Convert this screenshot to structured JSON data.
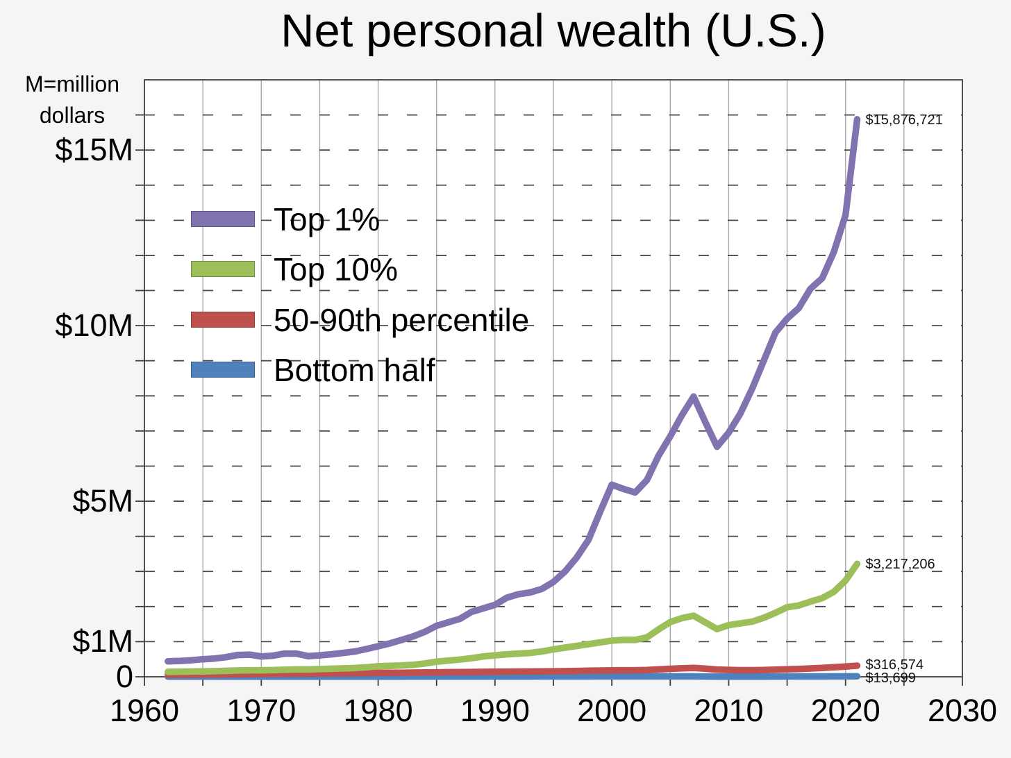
{
  "title": "Net personal wealth (U.S.)",
  "unit_note": {
    "line1": "M=million",
    "line2": "dollars"
  },
  "colors": {
    "top_1_pct": "#8172b0",
    "top_10_pct": "#9cbf5a",
    "pct_50_90": "#c0504d",
    "bottom_half": "#4f81bd",
    "plot_background": "#ffffff",
    "outer_background": "#f5f5f5",
    "frame": "#3f3f3f",
    "vertical_grid": "#a9a9a9",
    "dashed_grid": "#4a4a4a",
    "text": "#000000"
  },
  "chart_data": {
    "type": "line",
    "title": "Net personal wealth (U.S.)",
    "unit": "million USD per adult",
    "xlim": [
      1960,
      2030
    ],
    "ylim": [
      0,
      17
    ],
    "grid": {
      "vertical_solid_every_years": 5,
      "horizontal_dashed_every_million": 1
    },
    "legend_position": "upper-left-inside",
    "x_tick_labels": [
      "1960",
      "1970",
      "1980",
      "1990",
      "2000",
      "2010",
      "2020",
      "2030"
    ],
    "x_tick_values": [
      1960,
      1970,
      1980,
      1990,
      2000,
      2010,
      2020,
      2030
    ],
    "y_tick_labels": [
      {
        "label": "$15M",
        "value": 15
      },
      {
        "label": "$10M",
        "value": 10
      },
      {
        "label": "$5M",
        "value": 5
      },
      {
        "label": "$1M",
        "value": 1
      },
      {
        "label": "0",
        "value": 0
      }
    ],
    "years": [
      1962,
      1963,
      1964,
      1965,
      1966,
      1967,
      1968,
      1969,
      1970,
      1971,
      1972,
      1973,
      1974,
      1975,
      1976,
      1977,
      1978,
      1979,
      1980,
      1981,
      1982,
      1983,
      1984,
      1985,
      1986,
      1987,
      1988,
      1989,
      1990,
      1991,
      1992,
      1993,
      1994,
      1995,
      1996,
      1997,
      1998,
      1999,
      2000,
      2001,
      2002,
      2003,
      2004,
      2005,
      2006,
      2007,
      2008,
      2009,
      2010,
      2011,
      2012,
      2013,
      2014,
      2015,
      2016,
      2017,
      2018,
      2019,
      2020,
      2021
    ],
    "series": [
      {
        "name": "Top 1%",
        "color": "#8172b0",
        "end_label": "$15,876,721",
        "end_value_usd": 15876721,
        "values_usd_m": [
          0.44,
          0.45,
          0.47,
          0.5,
          0.52,
          0.56,
          0.62,
          0.63,
          0.58,
          0.6,
          0.66,
          0.66,
          0.59,
          0.61,
          0.64,
          0.68,
          0.72,
          0.79,
          0.87,
          0.95,
          1.05,
          1.15,
          1.28,
          1.45,
          1.55,
          1.65,
          1.85,
          1.95,
          2.05,
          2.25,
          2.35,
          2.4,
          2.5,
          2.7,
          3.0,
          3.4,
          3.9,
          4.7,
          5.47,
          5.35,
          5.25,
          5.6,
          6.3,
          6.85,
          7.45,
          7.98,
          7.25,
          6.55,
          6.95,
          7.5,
          8.2,
          9.0,
          9.8,
          10.2,
          10.5,
          11.05,
          11.35,
          12.1,
          13.15,
          15.876721
        ]
      },
      {
        "name": "Top 10%",
        "color": "#9cbf5a",
        "end_label": "$3,217,206",
        "end_value_usd": 3217206,
        "values_usd_m": [
          0.14,
          0.145,
          0.15,
          0.155,
          0.16,
          0.17,
          0.18,
          0.185,
          0.185,
          0.19,
          0.2,
          0.21,
          0.21,
          0.22,
          0.23,
          0.24,
          0.25,
          0.27,
          0.3,
          0.31,
          0.32,
          0.34,
          0.38,
          0.43,
          0.46,
          0.49,
          0.53,
          0.58,
          0.61,
          0.64,
          0.66,
          0.68,
          0.72,
          0.78,
          0.83,
          0.88,
          0.93,
          0.98,
          1.03,
          1.05,
          1.05,
          1.12,
          1.35,
          1.56,
          1.67,
          1.74,
          1.55,
          1.36,
          1.47,
          1.52,
          1.57,
          1.68,
          1.82,
          1.98,
          2.03,
          2.14,
          2.24,
          2.42,
          2.74,
          3.217206
        ]
      },
      {
        "name": "50-90th percentile",
        "color": "#c0504d",
        "end_label": "$316,574",
        "end_value_usd": 316574,
        "values_usd_m": [
          0.055,
          0.057,
          0.06,
          0.063,
          0.066,
          0.069,
          0.072,
          0.075,
          0.078,
          0.081,
          0.085,
          0.088,
          0.087,
          0.09,
          0.094,
          0.098,
          0.102,
          0.106,
          0.11,
          0.112,
          0.114,
          0.118,
          0.122,
          0.126,
          0.13,
          0.133,
          0.137,
          0.141,
          0.144,
          0.146,
          0.148,
          0.15,
          0.153,
          0.157,
          0.161,
          0.166,
          0.172,
          0.178,
          0.184,
          0.186,
          0.185,
          0.192,
          0.21,
          0.228,
          0.242,
          0.252,
          0.232,
          0.205,
          0.195,
          0.188,
          0.188,
          0.194,
          0.202,
          0.212,
          0.224,
          0.238,
          0.252,
          0.27,
          0.292,
          0.316574
        ]
      },
      {
        "name": "Bottom half",
        "color": "#4f81bd",
        "end_label": "$13,699",
        "end_value_usd": 13699,
        "values_usd_m": [
          0.0037,
          0.0038,
          0.004,
          0.0042,
          0.0044,
          0.0046,
          0.0048,
          0.0049,
          0.005,
          0.0052,
          0.0055,
          0.0055,
          0.0053,
          0.0055,
          0.0058,
          0.006,
          0.0063,
          0.0066,
          0.0068,
          0.0068,
          0.0069,
          0.0071,
          0.0073,
          0.0075,
          0.0077,
          0.0079,
          0.0082,
          0.0085,
          0.0086,
          0.0085,
          0.0086,
          0.0088,
          0.009,
          0.0093,
          0.0097,
          0.0102,
          0.0108,
          0.0113,
          0.0118,
          0.0116,
          0.011,
          0.011,
          0.0115,
          0.0118,
          0.012,
          0.0118,
          0.0085,
          0.006,
          0.005,
          0.0045,
          0.005,
          0.006,
          0.007,
          0.008,
          0.009,
          0.01,
          0.0108,
          0.0118,
          0.0125,
          0.013699
        ]
      }
    ]
  }
}
